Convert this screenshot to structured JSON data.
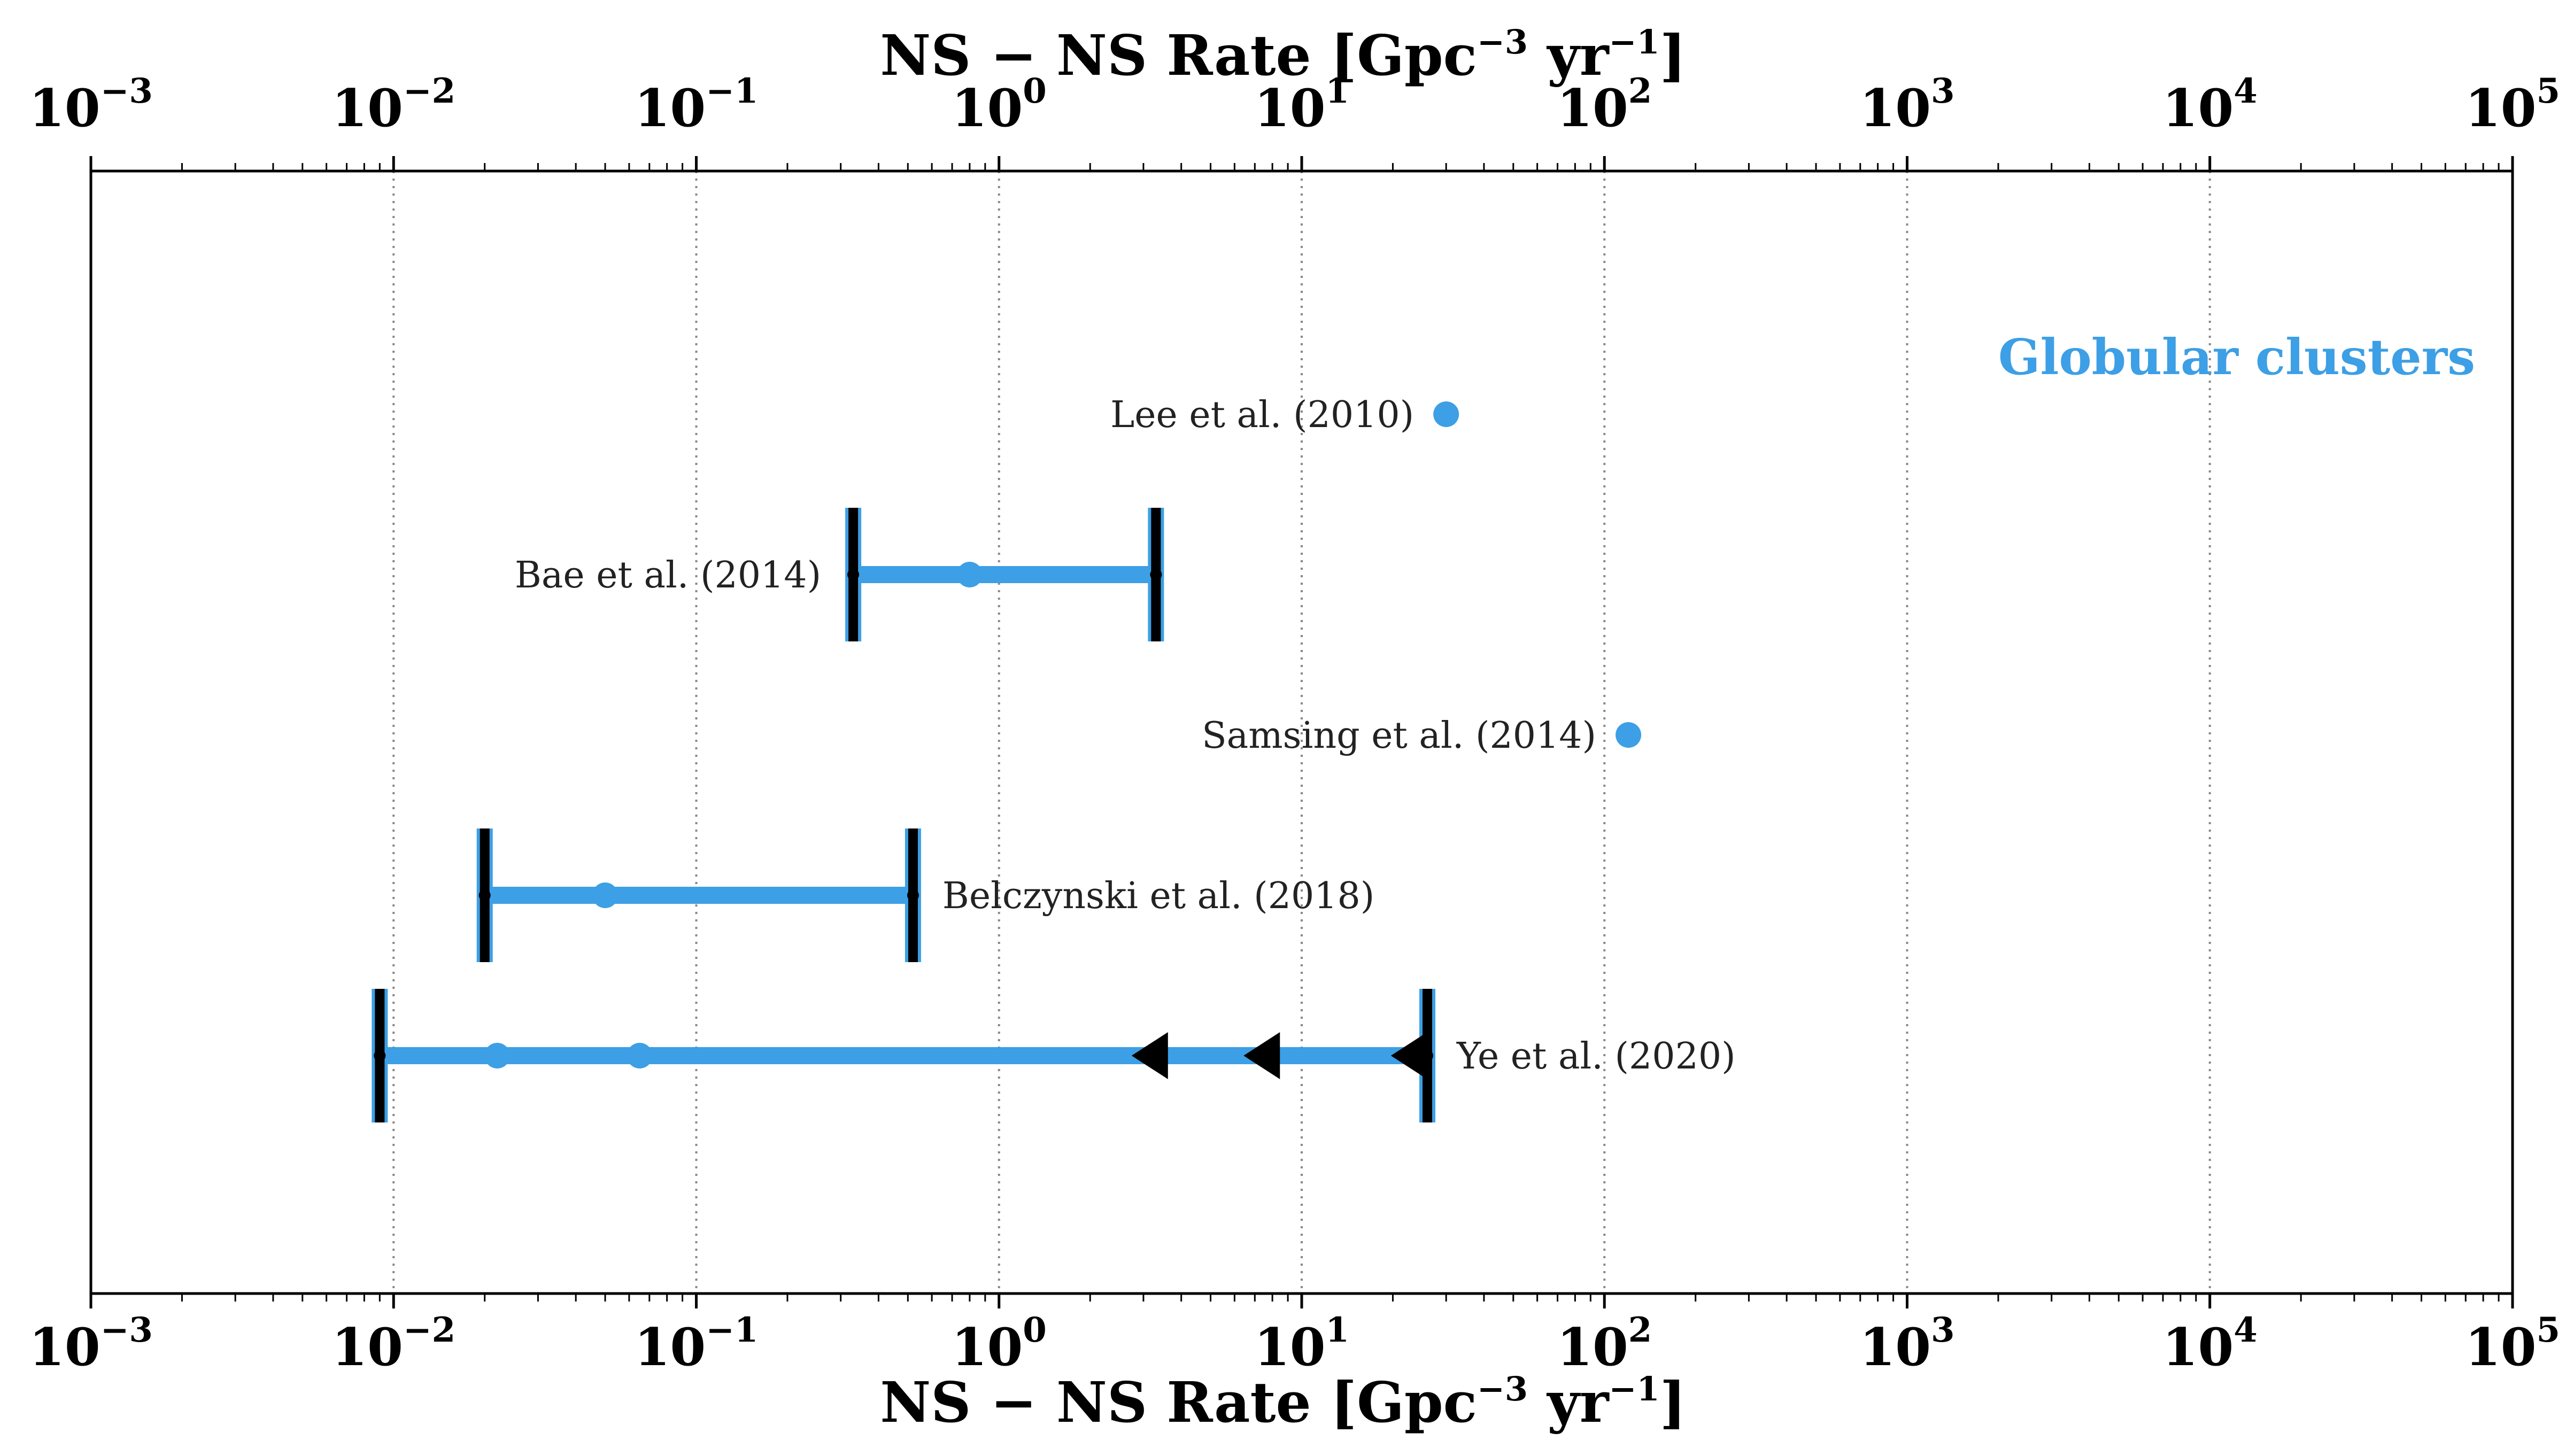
{
  "colors": {
    "series": "#3d9fe5",
    "marker_edge": "#000000",
    "grid": "#888888",
    "text": "#222222"
  },
  "chart_data": {
    "type": "scatter",
    "x_scale": "log",
    "xlim": [
      0.001,
      100000
    ],
    "grid": "vertical dotted at decades",
    "axes": {
      "top_label": {
        "pre": "NS − NS  Rate [Gpc",
        "exp1": "−3",
        "mid": " yr",
        "exp2": "−1",
        "post": "]"
      },
      "bottom_label": {
        "pre": "NS − NS  Rate [Gpc",
        "exp1": "−3",
        "mid": " yr",
        "exp2": "−1",
        "post": "]"
      },
      "ticks": [
        {
          "value": 0.001,
          "base": "10",
          "exp": "−3"
        },
        {
          "value": 0.01,
          "base": "10",
          "exp": "−2"
        },
        {
          "value": 0.1,
          "base": "10",
          "exp": "−1"
        },
        {
          "value": 1,
          "base": "10",
          "exp": "0"
        },
        {
          "value": 10,
          "base": "10",
          "exp": "1"
        },
        {
          "value": 100,
          "base": "10",
          "exp": "2"
        },
        {
          "value": 1000,
          "base": "10",
          "exp": "3"
        },
        {
          "value": 10000,
          "base": "10",
          "exp": "4"
        },
        {
          "value": 100000,
          "base": "10",
          "exp": "5"
        }
      ]
    },
    "panel_label": "Globular clusters",
    "studies": [
      {
        "name": "Lee et al. (2010)",
        "row": 1,
        "points": [
          30
        ],
        "range": null,
        "upper_limits": [],
        "label_side": "left"
      },
      {
        "name": "Bae et al. (2014)",
        "row": 2,
        "points": [
          0.8
        ],
        "range": [
          0.33,
          3.3
        ],
        "upper_limits": [],
        "label_side": "left"
      },
      {
        "name": "Samsing et al. (2014)",
        "row": 3,
        "points": [
          120
        ],
        "range": null,
        "upper_limits": [],
        "label_side": "left"
      },
      {
        "name": "Belczynski et al. (2018)",
        "row": 4,
        "points": [
          0.05
        ],
        "range": [
          0.02,
          0.52
        ],
        "upper_limits": [],
        "label_side": "right"
      },
      {
        "name": "Ye et al. (2020)",
        "row": 5,
        "points": [
          0.022,
          0.065
        ],
        "range": [
          0.009,
          26
        ],
        "upper_limits": [
          3.2,
          7.5,
          23
        ],
        "label_side": "right"
      }
    ]
  }
}
